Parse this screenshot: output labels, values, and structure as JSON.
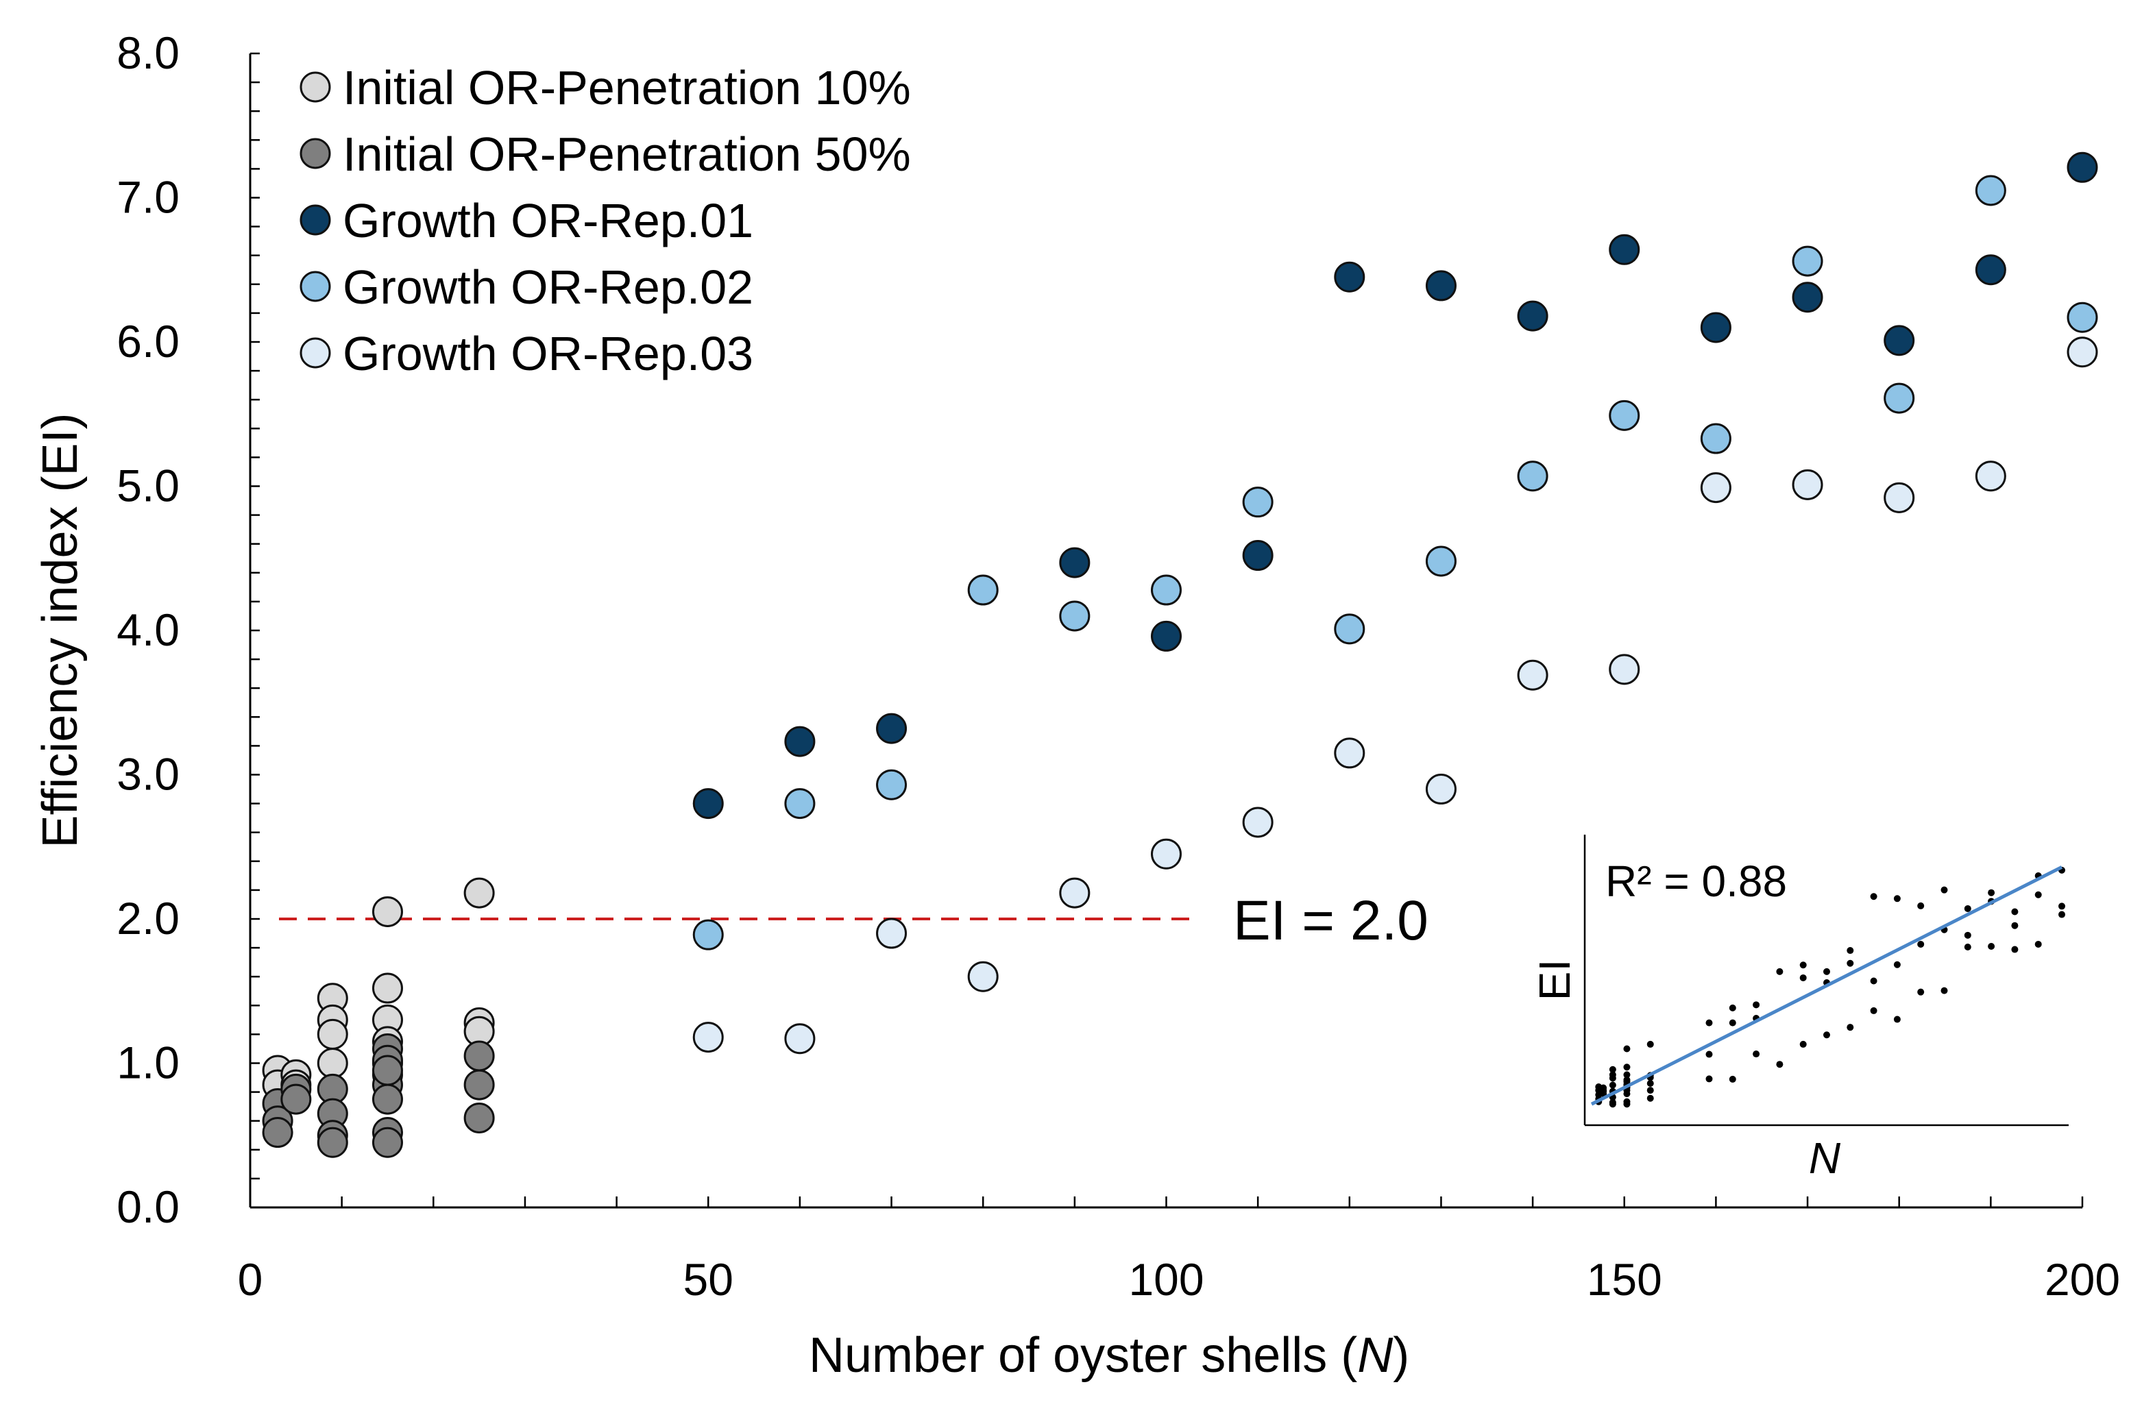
{
  "chart_data": {
    "type": "scatter",
    "title": "",
    "xlabel": "Number of oyster shells",
    "xlabel_var": "N",
    "ylabel": "Efficiency index (EI)",
    "xlim": [
      0,
      200
    ],
    "ylim": [
      0,
      8
    ],
    "x_ticks": [
      "0",
      "50",
      "100",
      "150",
      "200"
    ],
    "x_tick_values": [
      0,
      50,
      100,
      150,
      200
    ],
    "y_ticks": [
      "0.0",
      "1.0",
      "2.0",
      "3.0",
      "4.0",
      "5.0",
      "6.0",
      "7.0",
      "8.0"
    ],
    "y_tick_values": [
      0,
      1,
      2,
      3,
      4,
      5,
      6,
      7,
      8
    ],
    "grid": false,
    "legend_position": "top-left",
    "reference_line": {
      "y": 2.0,
      "x_range": [
        0,
        104
      ],
      "label": "EI = 2.0",
      "color": "#cc1f1f"
    },
    "series": [
      {
        "name": "Initial OR-Penetration 10%",
        "color": "#d9d9d9",
        "x": [
          3,
          3,
          5,
          5,
          9,
          9,
          9,
          9,
          15,
          15,
          15,
          15,
          15,
          25,
          25,
          25
        ],
        "y": [
          0.95,
          0.85,
          0.92,
          0.85,
          1.45,
          1.3,
          1.2,
          1.0,
          2.05,
          1.52,
          1.3,
          1.15,
          1.0,
          2.18,
          1.28,
          1.22
        ]
      },
      {
        "name": "Initial OR-Penetration 50%",
        "color": "#7f7f7f",
        "x": [
          3,
          3,
          3,
          5,
          5,
          9,
          9,
          9,
          9,
          15,
          15,
          15,
          15,
          15,
          15,
          15,
          15,
          25,
          25,
          25
        ],
        "y": [
          0.72,
          0.6,
          0.52,
          0.82,
          0.75,
          0.82,
          0.65,
          0.5,
          0.45,
          1.1,
          1.02,
          0.92,
          0.85,
          0.75,
          0.52,
          0.45,
          0.95,
          1.05,
          0.85,
          0.62
        ]
      },
      {
        "name": "Growth OR-Rep.01",
        "color": "#0b3c61",
        "x": [
          50,
          60,
          70,
          90,
          100,
          110,
          120,
          130,
          140,
          150,
          160,
          170,
          180,
          190,
          200
        ],
        "y": [
          2.8,
          3.23,
          3.32,
          4.47,
          3.96,
          4.52,
          6.45,
          6.39,
          6.18,
          6.64,
          6.1,
          6.31,
          6.01,
          6.5,
          7.21
        ]
      },
      {
        "name": "Growth OR-Rep.02",
        "color": "#8ec3e6",
        "x": [
          50,
          60,
          70,
          80,
          90,
          100,
          110,
          120,
          130,
          140,
          150,
          160,
          170,
          180,
          190,
          200
        ],
        "y": [
          1.89,
          2.8,
          2.93,
          4.28,
          4.1,
          4.28,
          4.89,
          4.01,
          4.48,
          5.07,
          5.49,
          5.33,
          6.56,
          5.61,
          7.05,
          6.17
        ]
      },
      {
        "name": "Growth OR-Rep.03",
        "color": "#deebf7",
        "x": [
          50,
          60,
          70,
          80,
          90,
          100,
          110,
          120,
          130,
          140,
          150,
          160,
          170,
          180,
          190,
          200
        ],
        "y": [
          1.18,
          1.17,
          1.9,
          1.6,
          2.18,
          2.45,
          2.67,
          3.15,
          2.9,
          3.69,
          3.73,
          4.99,
          5.01,
          4.92,
          5.07,
          5.93
        ]
      }
    ],
    "inset": {
      "type": "scatter",
      "label": "R² = 0.88",
      "r_squared": 0.88,
      "xlabel": "N",
      "ylabel": "EI",
      "xlim": [
        0,
        200
      ],
      "ylim": [
        0,
        8
      ],
      "trendline": {
        "x": [
          0,
          200
        ],
        "y": [
          0.45,
          7.3
        ],
        "color": "#4a86c8"
      }
    }
  }
}
